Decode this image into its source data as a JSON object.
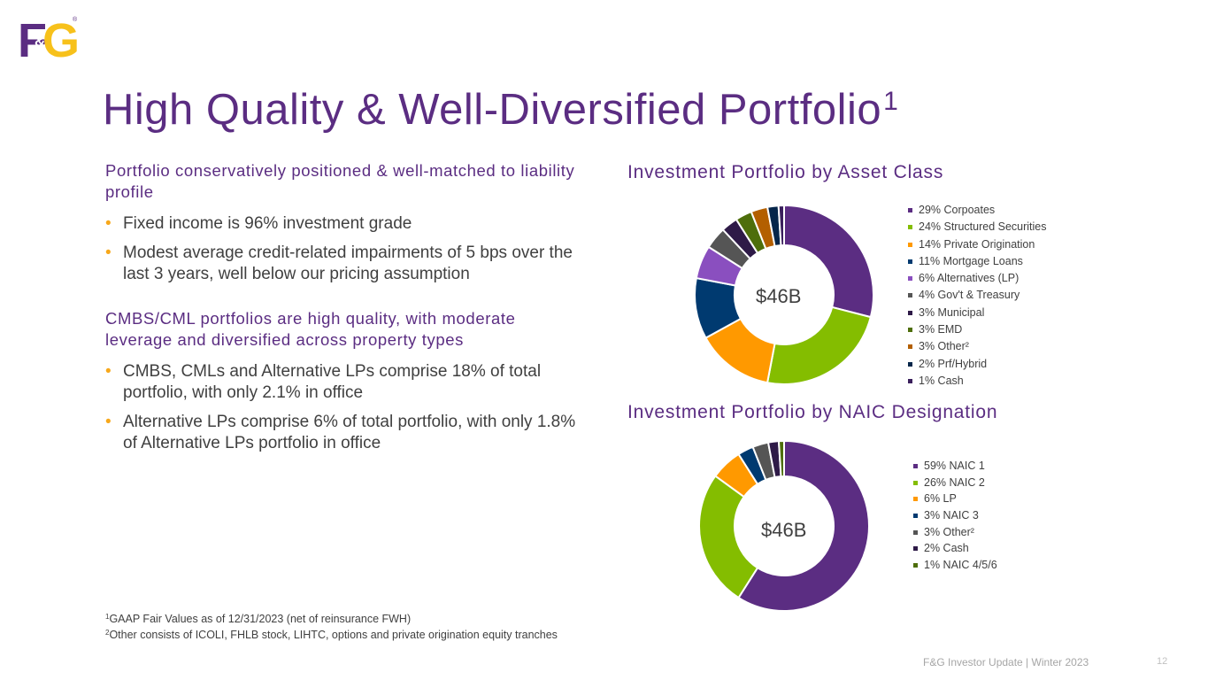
{
  "logo": {
    "text_left": "F",
    "text_amp": "&",
    "text_right": "G",
    "mark": "®",
    "purple": "#5b2d82",
    "yellow": "#f7c11b"
  },
  "title": {
    "text": "High Quality & Well-Diversified Portfolio",
    "sup": "1"
  },
  "section1": {
    "heading": "Portfolio conservatively positioned & well-matched to liability profile",
    "bullets": [
      "Fixed income is 96% investment grade",
      "Modest average credit-related impairments of 5 bps over the last 3 years, well below our pricing assumption"
    ]
  },
  "section2": {
    "heading": "CMBS/CML portfolios are high quality, with moderate leverage and diversified across property types",
    "bullets": [
      "CMBS, CMLs and Alternative LPs comprise 18% of total portfolio, with only 2.1% in office",
      "Alternative LPs comprise 6% of total portfolio, with only 1.8% of Alternative LPs portfolio in office"
    ]
  },
  "bullet_glyph": "•",
  "footnotes": [
    {
      "sup": "1",
      "text": "GAAP Fair Values as of 12/31/2023 (net of reinsurance FWH)"
    },
    {
      "sup": "2",
      "text": "Other consists of ICOLI, FHLB stock, LIHTC, options and private origination equity tranches"
    }
  ],
  "footer": {
    "text": "F&G Investor Update | Winter 2023",
    "page": "12"
  },
  "chart_data": [
    {
      "type": "pie",
      "style": "donut",
      "title": "Investment Portfolio by Asset Class",
      "center_label": "$46B",
      "legend_position": "right",
      "slices": [
        {
          "label": "29% Corpoates",
          "value": 29,
          "color": "#5b2d82"
        },
        {
          "label": "24% Structured Securities",
          "value": 24,
          "color": "#84bd00"
        },
        {
          "label": "14% Private Origination",
          "value": 14,
          "color": "#ff9900"
        },
        {
          "label": "11% Mortgage Loans",
          "value": 11,
          "color": "#003a70"
        },
        {
          "label": "6% Alternatives (LP)",
          "value": 6,
          "color": "#8a4fbf"
        },
        {
          "label": "4% Gov't & Treasury",
          "value": 4,
          "color": "#555555"
        },
        {
          "label": "3% Municipal",
          "value": 3,
          "color": "#2e1a47"
        },
        {
          "label": "3% EMD",
          "value": 3,
          "color": "#4e6e0b"
        },
        {
          "label": "3% Other²",
          "value": 3,
          "color": "#b35f00"
        },
        {
          "label": "2% Prf/Hybrid",
          "value": 2,
          "color": "#06264a"
        },
        {
          "label": "1% Cash",
          "value": 1,
          "color": "#3a1f5c"
        }
      ]
    },
    {
      "type": "pie",
      "style": "donut",
      "title": "Investment Portfolio by NAIC Designation",
      "center_label": "$46B",
      "legend_position": "right",
      "slices": [
        {
          "label": "59% NAIC 1",
          "value": 59,
          "color": "#5b2d82"
        },
        {
          "label": "26% NAIC 2",
          "value": 26,
          "color": "#84bd00"
        },
        {
          "label": "6% LP",
          "value": 6,
          "color": "#ff9900"
        },
        {
          "label": "3% NAIC 3",
          "value": 3,
          "color": "#003a70"
        },
        {
          "label": "3% Other²",
          "value": 3,
          "color": "#555555"
        },
        {
          "label": "2% Cash",
          "value": 2,
          "color": "#2e1a47"
        },
        {
          "label": "1% NAIC 4/5/6",
          "value": 1,
          "color": "#4e6e0b"
        }
      ]
    }
  ]
}
